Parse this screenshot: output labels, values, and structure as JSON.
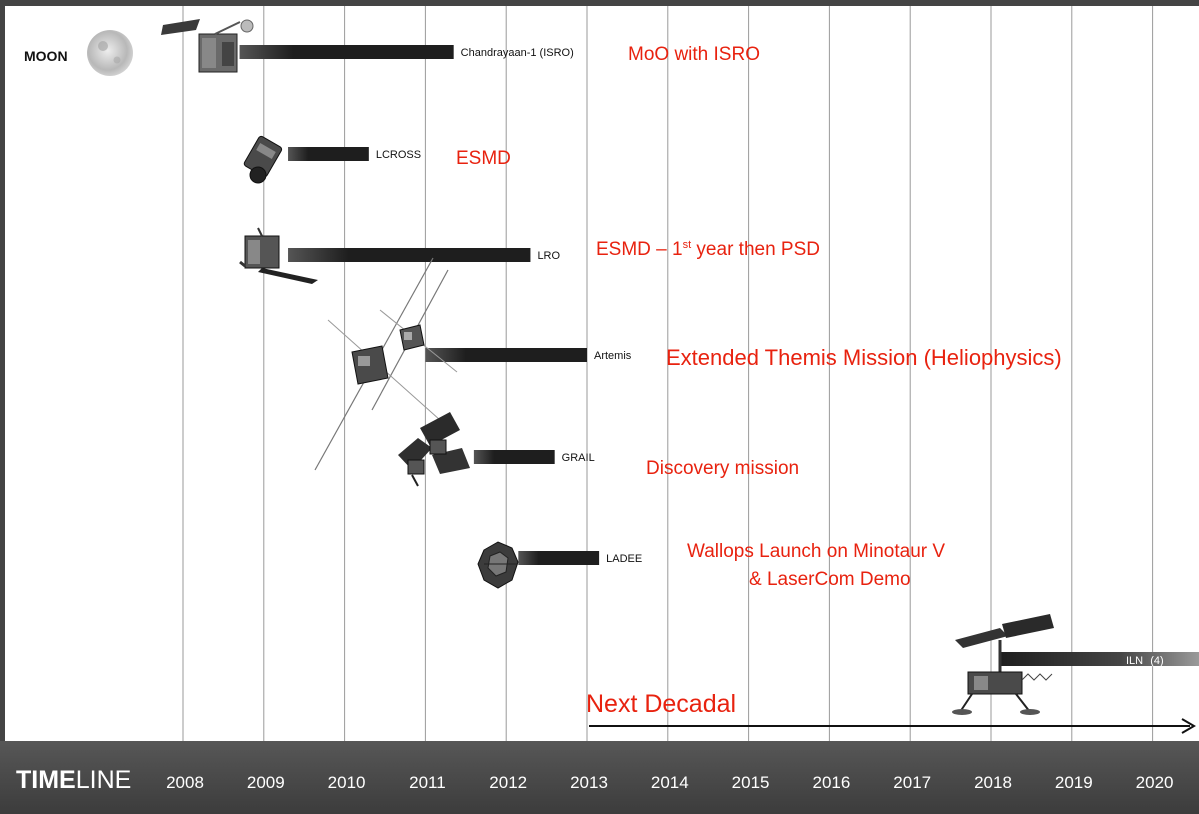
{
  "chart_data": {
    "type": "timeline",
    "axis_label_strong": "TIME",
    "axis_label_light": "LINE",
    "xlim": [
      2007.0,
      2020.7
    ],
    "ticks": [
      2008,
      2009,
      2010,
      2011,
      2012,
      2013,
      2014,
      2015,
      2016,
      2017,
      2018,
      2019,
      2020
    ],
    "grid": true,
    "target_label": "MOON",
    "missions": [
      {
        "name": "Chandrayaan-1 (ISRO)",
        "start": 2008.7,
        "end": 2011.35,
        "note": "MoO with ISRO",
        "icon": "satellite-icon"
      },
      {
        "name": "LCROSS",
        "start": 2009.3,
        "end": 2010.3,
        "note": "ESMD",
        "icon": "probe-icon"
      },
      {
        "name": "LRO",
        "start": 2009.3,
        "end": 2012.3,
        "note_main": "ESMD – 1",
        "note_sup": "st",
        "note_tail": " year then PSD",
        "icon": "orbiter-icon"
      },
      {
        "name": "Artemis",
        "start": 2011.0,
        "end": 2013.0,
        "note": "Extended Themis Mission (Heliophysics)",
        "icon": "twin-probes-icon"
      },
      {
        "name": "GRAIL",
        "start": 2011.6,
        "end": 2012.6,
        "note": "Discovery mission",
        "icon": "twin-spacecraft-icon"
      },
      {
        "name": "LADEE",
        "start": 2012.15,
        "end": 2013.15,
        "note_line1": "Wallops Launch on Minotaur V",
        "note_line2": "& LaserCom Demo",
        "icon": "ladee-icon"
      },
      {
        "name": "ILN",
        "suffix": "(4)",
        "start": 2018.1,
        "end": 2020.7,
        "icon": "lander-icon"
      }
    ],
    "decadal": {
      "label": "Next Decadal",
      "start": 2013.0
    }
  }
}
